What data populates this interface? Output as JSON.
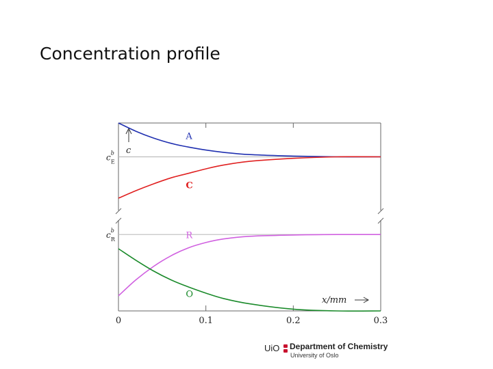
{
  "slide": {
    "title": "Concentration profile"
  },
  "footer": {
    "logo_mark": "UiO",
    "department": "Department of Chemistry",
    "university": "University of Oslo",
    "seal_color": "#c8102e"
  },
  "chart_data": {
    "type": "line",
    "x_range": [
      0,
      0.3
    ],
    "x_ticks": [
      "0",
      "0.1",
      "0.2",
      "0.3"
    ],
    "x_tick_values": [
      0,
      0.1,
      0.2,
      0.3
    ],
    "xlabel": "x/mm",
    "grid": false,
    "broken_y_axis": true,
    "panels": [
      {
        "name": "upper",
        "y_range": [
          0,
          1
        ],
        "ylabel": "c",
        "reference_line": {
          "label": "c",
          "superscript": "b",
          "subscript": "E",
          "value": 0.55
        },
        "series": [
          {
            "name": "A",
            "color": "#1f2fb0",
            "x": [
              0,
              0.02,
              0.04,
              0.06,
              0.08,
              0.1,
              0.12,
              0.15,
              0.2,
              0.25,
              0.3
            ],
            "y": [
              1.0,
              0.89,
              0.8,
              0.73,
              0.68,
              0.64,
              0.61,
              0.58,
              0.56,
              0.55,
              0.55
            ]
          },
          {
            "name": "C",
            "color": "#e02020",
            "x": [
              0,
              0.02,
              0.04,
              0.06,
              0.08,
              0.1,
              0.12,
              0.15,
              0.2,
              0.25,
              0.3
            ],
            "y": [
              0.0,
              0.1,
              0.19,
              0.27,
              0.33,
              0.39,
              0.44,
              0.49,
              0.53,
              0.55,
              0.55
            ]
          }
        ]
      },
      {
        "name": "lower",
        "y_range": [
          0,
          1
        ],
        "reference_line": {
          "label": "c",
          "superscript": "b",
          "subscript": "R",
          "value": 0.86
        },
        "series": [
          {
            "name": "R",
            "color": "#d060e0",
            "x": [
              0,
              0.02,
              0.04,
              0.06,
              0.08,
              0.1,
              0.12,
              0.15,
              0.2,
              0.25,
              0.3
            ],
            "y": [
              0.17,
              0.35,
              0.5,
              0.62,
              0.71,
              0.77,
              0.81,
              0.84,
              0.855,
              0.86,
              0.86
            ]
          },
          {
            "name": "O",
            "color": "#1a8a2a",
            "x": [
              0,
              0.02,
              0.04,
              0.06,
              0.08,
              0.1,
              0.12,
              0.15,
              0.2,
              0.25,
              0.3
            ],
            "y": [
              0.7,
              0.57,
              0.45,
              0.35,
              0.27,
              0.2,
              0.14,
              0.08,
              0.02,
              0.0,
              0.0
            ]
          }
        ]
      }
    ]
  }
}
